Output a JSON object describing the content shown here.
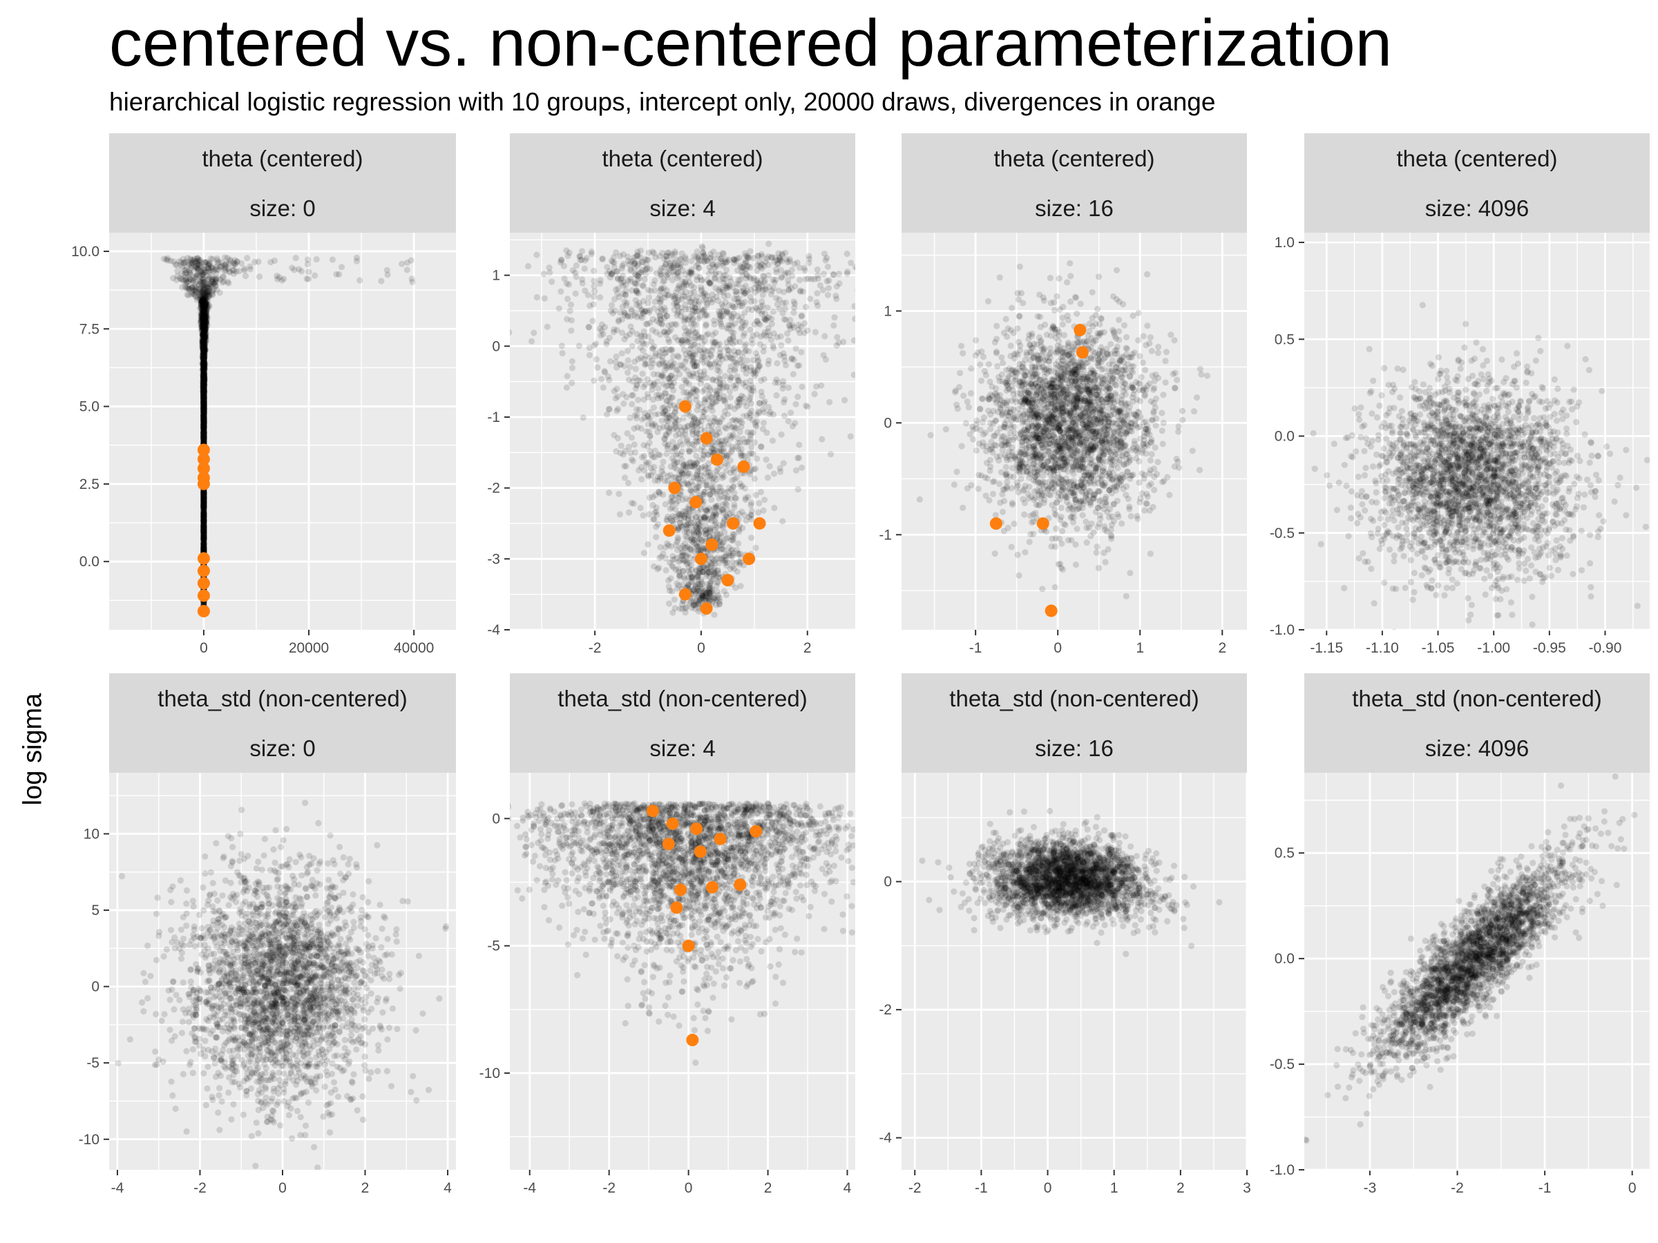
{
  "title": "centered vs. non-centered parameterization",
  "subtitle": "hierarchical logistic regression with 10 groups, intercept only, 20000 draws, divergences in orange",
  "ylabel": "log sigma",
  "colors": {
    "points": "#000000",
    "divergences": "#ff7f0e",
    "panel": "#ebebeb",
    "strip": "#d9d9d9",
    "grid": "#ffffff"
  },
  "chart_data": [
    {
      "type": "scatter",
      "strip": [
        "theta (centered)",
        "size: 0"
      ],
      "xlim": [
        -18000,
        48000
      ],
      "ylim": [
        -2.2,
        10.6
      ],
      "xticks": [
        0,
        20000,
        40000
      ],
      "xtick_labels": [
        "0",
        "20000",
        "40000"
      ],
      "yticks": [
        0,
        2.5,
        5,
        7.5,
        10
      ],
      "ytick_labels": [
        "0.0",
        "2.5",
        "5.0",
        "7.5",
        "10.0"
      ],
      "divergences": [
        [
          0,
          3.6
        ],
        [
          0,
          3.3
        ],
        [
          0,
          3.0
        ],
        [
          0,
          2.7
        ],
        [
          0,
          2.5
        ],
        [
          0,
          0.1
        ],
        [
          0,
          -0.3
        ],
        [
          0,
          -0.7
        ],
        [
          0,
          -1.1
        ],
        [
          0,
          -1.6
        ]
      ]
    },
    {
      "type": "scatter",
      "strip": [
        "theta (centered)",
        "size: 4"
      ],
      "xlim": [
        -3.6,
        2.9
      ],
      "ylim": [
        -4.0,
        1.6
      ],
      "xticks": [
        -2,
        0,
        2
      ],
      "xtick_labels": [
        "-2",
        "0",
        "2"
      ],
      "yticks": [
        -4,
        -3,
        -2,
        -1,
        0,
        1
      ],
      "ytick_labels": [
        "-4",
        "-3",
        "-2",
        "-1",
        "0",
        "1"
      ],
      "divergences": [
        [
          -0.3,
          -0.85
        ],
        [
          0.1,
          -1.3
        ],
        [
          0.3,
          -1.6
        ],
        [
          -0.5,
          -2.0
        ],
        [
          0.8,
          -1.7
        ],
        [
          -0.6,
          -2.6
        ],
        [
          0.6,
          -2.5
        ],
        [
          1.1,
          -2.5
        ],
        [
          0.9,
          -3.0
        ],
        [
          -0.3,
          -3.5
        ],
        [
          0.1,
          -3.7
        ],
        [
          0.5,
          -3.3
        ],
        [
          -0.1,
          -2.2
        ],
        [
          0.2,
          -2.8
        ],
        [
          0.0,
          -3.0
        ]
      ]
    },
    {
      "type": "scatter",
      "strip": [
        "theta (centered)",
        "size: 16"
      ],
      "xlim": [
        -1.9,
        2.3
      ],
      "ylim": [
        -1.85,
        1.7
      ],
      "xticks": [
        -1,
        0,
        1,
        2
      ],
      "xtick_labels": [
        "-1",
        "0",
        "1",
        "2"
      ],
      "yticks": [
        -1,
        0,
        1
      ],
      "ytick_labels": [
        "-1",
        "0",
        "1"
      ],
      "divergences": [
        [
          0.27,
          0.83
        ],
        [
          0.3,
          0.63
        ],
        [
          -0.75,
          -0.9
        ],
        [
          -0.18,
          -0.9
        ],
        [
          -0.08,
          -1.68
        ]
      ]
    },
    {
      "type": "scatter",
      "strip": [
        "theta (centered)",
        "size: 4096"
      ],
      "xlim": [
        -1.17,
        -0.86
      ],
      "ylim": [
        -1.0,
        1.05
      ],
      "xticks": [
        -1.15,
        -1.1,
        -1.05,
        -1.0,
        -0.95,
        -0.9
      ],
      "xtick_labels": [
        "-1.15",
        "-1.10",
        "-1.05",
        "-1.00",
        "-0.95",
        "-0.90"
      ],
      "yticks": [
        -1,
        -0.5,
        0,
        0.5,
        1
      ],
      "ytick_labels": [
        "-1.0",
        "-0.5",
        "0.0",
        "0.5",
        "1.0"
      ],
      "divergences": []
    },
    {
      "type": "scatter",
      "strip": [
        "theta_std (non-centered)",
        "size: 0"
      ],
      "xlim": [
        -4.2,
        4.2
      ],
      "ylim": [
        -12.0,
        14.0
      ],
      "xticks": [
        -4,
        -2,
        0,
        2,
        4
      ],
      "xtick_labels": [
        "-4",
        "-2",
        "0",
        "2",
        "4"
      ],
      "yticks": [
        -10,
        -5,
        0,
        5,
        10
      ],
      "ytick_labels": [
        "-10",
        "-5",
        "0",
        "5",
        "10"
      ],
      "divergences": []
    },
    {
      "type": "scatter",
      "strip": [
        "theta_std (non-centered)",
        "size: 4"
      ],
      "xlim": [
        -4.5,
        4.2
      ],
      "ylim": [
        -13.8,
        1.8
      ],
      "xticks": [
        -4,
        -2,
        0,
        2,
        4
      ],
      "xtick_labels": [
        "-4",
        "-2",
        "0",
        "2",
        "4"
      ],
      "yticks": [
        -10,
        -5,
        0
      ],
      "ytick_labels": [
        "-10",
        "-5",
        "0"
      ],
      "divergences": [
        [
          -0.9,
          0.3
        ],
        [
          -0.4,
          -0.2
        ],
        [
          0.2,
          -0.4
        ],
        [
          0.8,
          -0.8
        ],
        [
          1.7,
          -0.5
        ],
        [
          -0.5,
          -1.0
        ],
        [
          0.3,
          -1.3
        ],
        [
          1.3,
          -2.6
        ],
        [
          0.6,
          -2.7
        ],
        [
          -0.2,
          -2.8
        ],
        [
          -0.3,
          -3.5
        ],
        [
          0.0,
          -5.0
        ],
        [
          0.1,
          -8.7
        ]
      ]
    },
    {
      "type": "scatter",
      "strip": [
        "theta_std (non-centered)",
        "size: 16"
      ],
      "xlim": [
        -2.2,
        3.0
      ],
      "ylim": [
        -4.5,
        1.7
      ],
      "xticks": [
        -2,
        -1,
        0,
        1,
        2,
        3
      ],
      "xtick_labels": [
        "-2",
        "-1",
        "0",
        "1",
        "2",
        "3"
      ],
      "yticks": [
        -4,
        -2,
        0
      ],
      "ytick_labels": [
        "-4",
        "-2",
        "0"
      ],
      "divergences": []
    },
    {
      "type": "scatter",
      "strip": [
        "theta_std (non-centered)",
        "size: 4096"
      ],
      "xlim": [
        -3.75,
        0.2
      ],
      "ylim": [
        -1.0,
        0.88
      ],
      "xticks": [
        -3,
        -2,
        -1,
        0
      ],
      "xtick_labels": [
        "-3",
        "-2",
        "-1",
        "0"
      ],
      "yticks": [
        -1,
        -0.5,
        0,
        0.5
      ],
      "ytick_labels": [
        "-1.0",
        "-0.5",
        "0.0",
        "0.5"
      ],
      "divergences": []
    }
  ]
}
